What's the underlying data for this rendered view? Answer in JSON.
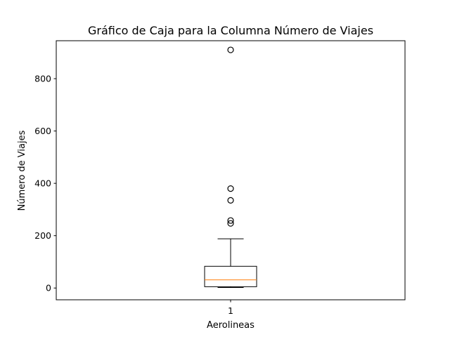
{
  "chart_data": {
    "type": "box",
    "title": "Gráfico de Caja para la Columna Número de Viajes",
    "xlabel": "Aerolineas",
    "ylabel": "Número de Viajes",
    "categories": [
      "1"
    ],
    "ylim": [
      -45,
      945
    ],
    "yticks": [
      0,
      200,
      400,
      600,
      800
    ],
    "ytick_labels": [
      "0",
      "200",
      "400",
      "600",
      "800"
    ],
    "grid": false,
    "legend": "none",
    "boxes": [
      {
        "category": "1",
        "min": 2,
        "q1": 5,
        "median": 31,
        "q3": 83,
        "max": 188,
        "outliers": [
          247,
          258,
          335,
          380,
          910
        ]
      }
    ],
    "colors": {
      "box": "#000000",
      "median": "#ff7f0e",
      "outlier": "#000000"
    }
  }
}
